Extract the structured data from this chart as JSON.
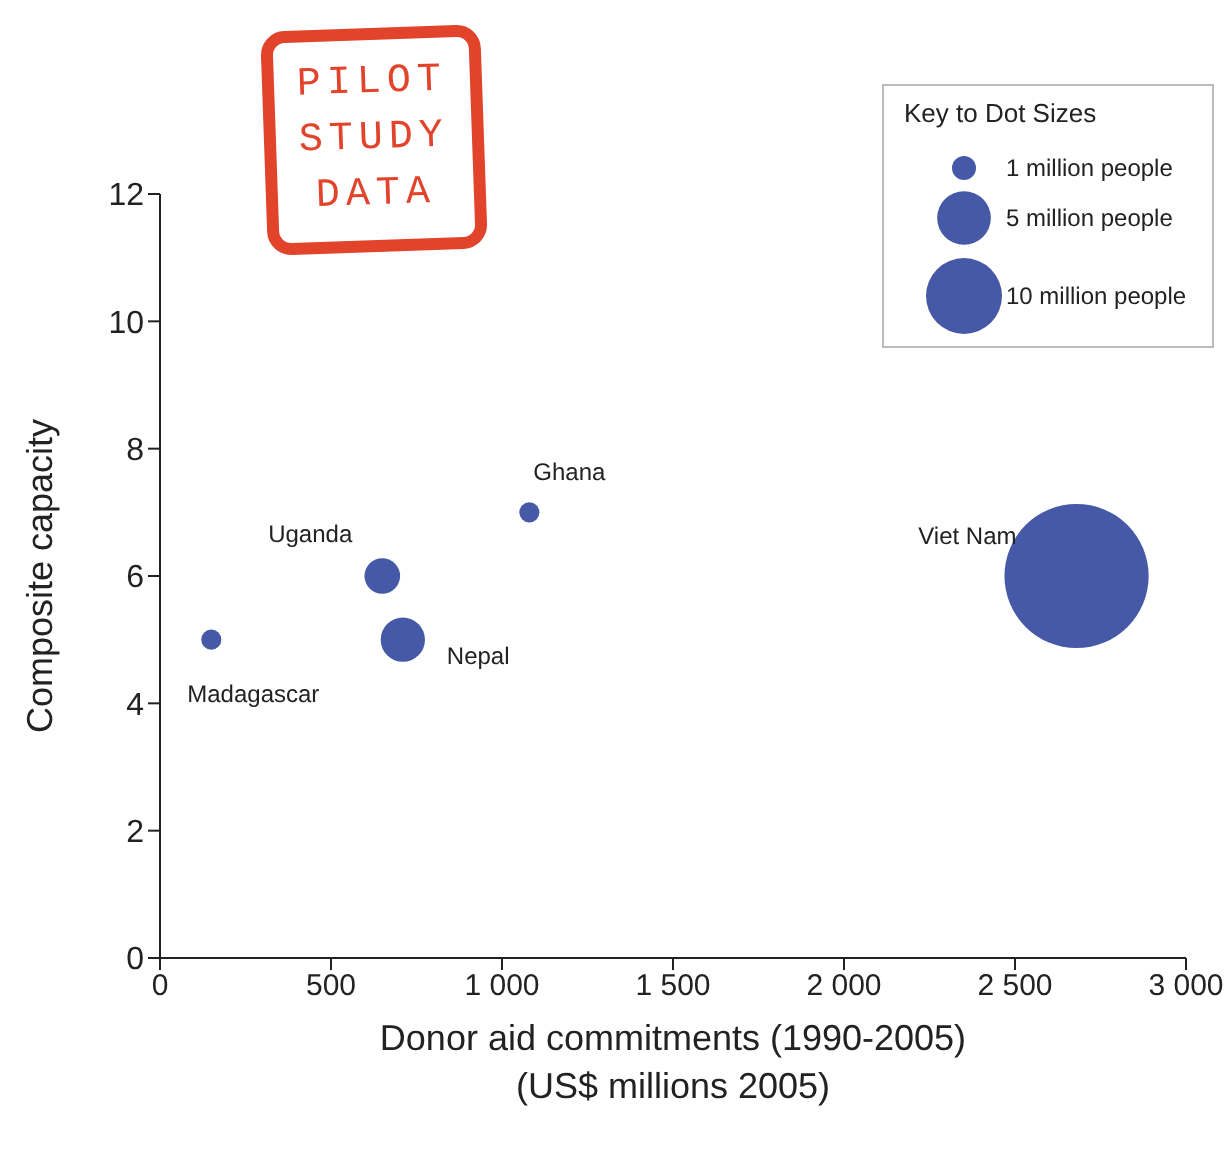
{
  "chart_data": {
    "type": "bubble",
    "xlabel": "Donor aid commitments (1990-2005)\n(US$ millions 2005)",
    "ylabel": "Composite capacity",
    "legend_title": "Key to Dot Sizes",
    "marker": "circle",
    "xlim": [
      0,
      3000
    ],
    "xticks": [
      0,
      500,
      {
        "value": 1000,
        "label": "1 000"
      },
      {
        "value": 1500,
        "label": "1 500"
      },
      {
        "value": 2000,
        "label": "2 000"
      },
      {
        "value": 2500,
        "label": "2 500"
      },
      {
        "value": 3000,
        "label": "3 000"
      }
    ],
    "ylim": [
      0,
      12
    ],
    "yticks": [
      0,
      2,
      4,
      6,
      8,
      10,
      12
    ],
    "size_legend": [
      {
        "value": 1,
        "label": "1 million people"
      },
      {
        "value": 5,
        "label": "5 million people"
      },
      {
        "value": 10,
        "label": "10 million people"
      }
    ],
    "series": [
      {
        "color": "#4659a6",
        "x": [
          150,
          650,
          710,
          1080,
          2680
        ],
        "values": [
          5,
          6,
          5,
          7,
          6
        ],
        "sizes": [
          0.7,
          2.2,
          3.4,
          0.7,
          36
        ]
      }
    ],
    "annotations": [
      {
        "text": "Madagascar",
        "x": 150,
        "y": 5
      },
      {
        "text": "Uganda",
        "x": 650,
        "y": 6
      },
      {
        "text": "Nepal",
        "x": 710,
        "y": 5
      },
      {
        "text": "Ghana",
        "x": 1080,
        "y": 7
      },
      {
        "text": "Viet Nam",
        "x": 2680,
        "y": 6
      },
      "PILOT STUDY DATA"
    ]
  }
}
